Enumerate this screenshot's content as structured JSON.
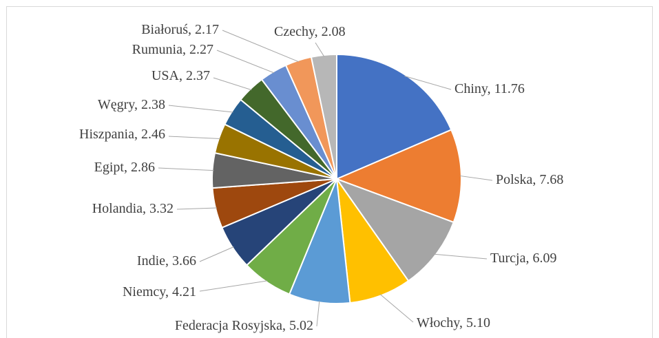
{
  "chart_data": {
    "type": "pie",
    "categories": [
      "Chiny",
      "Polska",
      "Turcja",
      "Włochy",
      "Federacja Rosyjska",
      "Niemcy",
      "Indie",
      "Holandia",
      "Egipt",
      "Hiszpania",
      "Węgry",
      "USA",
      "Rumunia",
      "Białoruś",
      "Czechy"
    ],
    "values": [
      11.76,
      7.68,
      6.09,
      5.1,
      5.02,
      4.21,
      3.66,
      3.32,
      2.86,
      2.46,
      2.38,
      2.37,
      2.27,
      2.17,
      2.08
    ],
    "value_labels": [
      "11.76",
      "7.68",
      "6.09",
      "5.10",
      "5.02",
      "4.21",
      "3.66",
      "3.32",
      "2.86",
      "2.46",
      "2.38",
      "2.37",
      "2.27",
      "2.17",
      "2.08"
    ],
    "colors": [
      "#4472c4",
      "#ed7d31",
      "#a5a5a5",
      "#ffc000",
      "#5b9bd5",
      "#70ad47",
      "#264478",
      "#9e480e",
      "#636363",
      "#997300",
      "#255e91",
      "#43682b",
      "#698ed0",
      "#f1975a",
      "#b7b7b7"
    ]
  }
}
